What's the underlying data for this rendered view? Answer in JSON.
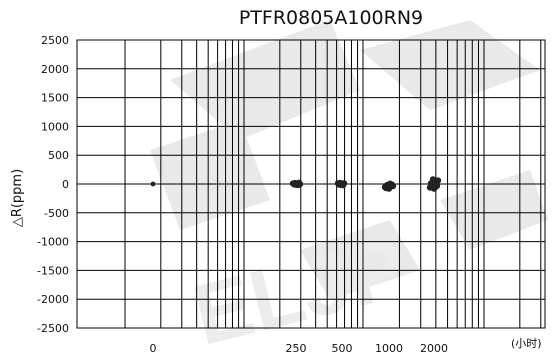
{
  "chart_data": {
    "type": "scatter",
    "title": "PTFR0805A100RN9",
    "xlabel": "(小时)",
    "ylabel": "△R(ppm)",
    "x_axis_scale": "log",
    "grid": true,
    "ylim": [
      -2500,
      2500
    ],
    "y_ticks": [
      2500,
      2000,
      1500,
      1000,
      500,
      0,
      -500,
      -1000,
      -1500,
      -2000,
      -2500
    ],
    "x_tick_labels": [
      "0",
      "250",
      "500",
      "1000",
      "2000"
    ],
    "series": [
      {
        "points": [
          {
            "x": "0",
            "y": 0
          },
          {
            "x": "250",
            "y": 8
          },
          {
            "x": "250",
            "y": -5
          },
          {
            "x": "250",
            "y": 15
          },
          {
            "x": "250",
            "y": -12
          },
          {
            "x": "250",
            "y": 3
          },
          {
            "x": "250",
            "y": -18
          },
          {
            "x": "250",
            "y": 20
          },
          {
            "x": "250",
            "y": -2
          },
          {
            "x": "500",
            "y": 10
          },
          {
            "x": "500",
            "y": -8
          },
          {
            "x": "500",
            "y": 18
          },
          {
            "x": "500",
            "y": -15
          },
          {
            "x": "500",
            "y": 2
          },
          {
            "x": "500",
            "y": -20
          },
          {
            "x": "500",
            "y": 12
          },
          {
            "x": "1000",
            "y": -10
          },
          {
            "x": "1000",
            "y": -35
          },
          {
            "x": "1000",
            "y": -55
          },
          {
            "x": "1000",
            "y": -70
          },
          {
            "x": "1000",
            "y": -20
          },
          {
            "x": "1000",
            "y": -45
          },
          {
            "x": "1000",
            "y": -80
          },
          {
            "x": "1000",
            "y": 5
          },
          {
            "x": "2000",
            "y": 30
          },
          {
            "x": "2000",
            "y": -30
          },
          {
            "x": "2000",
            "y": 60
          },
          {
            "x": "2000",
            "y": -60
          },
          {
            "x": "2000",
            "y": 10
          },
          {
            "x": "2000",
            "y": -10
          },
          {
            "x": "2000",
            "y": 80
          },
          {
            "x": "2000",
            "y": -80
          },
          {
            "x": "2000",
            "y": 45
          },
          {
            "x": "2000",
            "y": -45
          }
        ]
      }
    ],
    "watermark": "ELJP",
    "colors": {
      "points": "#222222",
      "grid": "#000000",
      "watermark": "#e9e9e9"
    }
  }
}
